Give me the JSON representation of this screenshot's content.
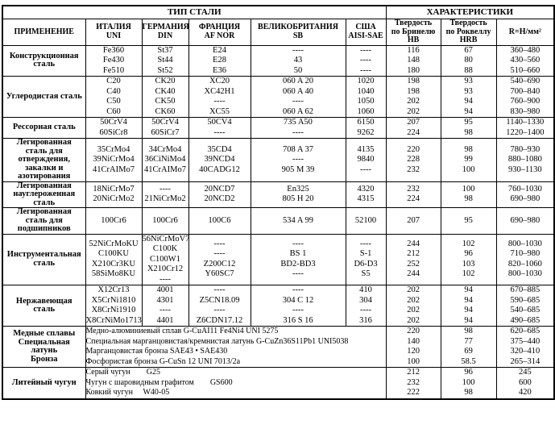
{
  "page": {
    "background_color": "#ffffff",
    "text_color": "#000000",
    "border_color": "#000000"
  },
  "table": {
    "header": {
      "group1": "ТИП СТАЛИ",
      "group2": "ХАРАКТЕРИСТИКИ",
      "columns": [
        {
          "name": "application",
          "lines": [
            "ПРИМЕНЕНИЕ"
          ]
        },
        {
          "name": "italy-uni",
          "lines": [
            "ИТАЛИЯ",
            "UNI"
          ]
        },
        {
          "name": "germany-din",
          "lines": [
            "ГЕРМАНИЯ",
            "DIN"
          ]
        },
        {
          "name": "france-afnor",
          "lines": [
            "ФРАНЦИЯ",
            "AF NOR"
          ]
        },
        {
          "name": "uk-sb",
          "lines": [
            "ВЕЛИКОБРИТАНИЯ",
            "SB"
          ]
        },
        {
          "name": "usa-aisi-sae",
          "lines": [
            "США",
            "AISI-SAE"
          ]
        },
        {
          "name": "hardness-brinell",
          "lines": [
            "Твердость",
            "по Бринелю",
            "HB"
          ]
        },
        {
          "name": "hardness-rockwell",
          "lines": [
            "Твердость",
            "по Роквеллу",
            "HRB"
          ]
        },
        {
          "name": "r-n-mm2",
          "lines": [
            "R=Н/мм²"
          ]
        }
      ]
    },
    "rows": [
      {
        "application": [
          "Конструкционная",
          "сталь"
        ],
        "cells": [
          {
            "lines": [
              "Fe360",
              "Fe430",
              "Fe510"
            ]
          },
          {
            "lines": [
              "St37",
              "St44",
              "St52"
            ]
          },
          {
            "lines": [
              "E24",
              "E28",
              "E36"
            ]
          },
          {
            "lines": [
              "----",
              "43",
              "50"
            ]
          },
          {
            "lines": [
              "----",
              "----",
              "----"
            ]
          },
          {
            "lines": [
              "116",
              "148",
              "180"
            ]
          },
          {
            "lines": [
              "67",
              "80",
              "88"
            ]
          },
          {
            "lines": [
              "360–480",
              "430–560",
              "510–660"
            ]
          }
        ]
      },
      {
        "application": [
          "Углеродистая сталь"
        ],
        "cells": [
          {
            "lines": [
              "C20",
              "C40",
              "C50",
              "C60"
            ]
          },
          {
            "lines": [
              "CK20",
              "CK40",
              "CK50",
              "CK60"
            ]
          },
          {
            "lines": [
              "XC20",
              "XC42H1",
              "----",
              "XC55"
            ]
          },
          {
            "lines": [
              "060 A 20",
              "060 A 40",
              "----",
              "060 A 62"
            ]
          },
          {
            "lines": [
              "1020",
              "1040",
              "1050",
              "1060"
            ]
          },
          {
            "lines": [
              "198",
              "198",
              "202",
              "202"
            ]
          },
          {
            "lines": [
              "93",
              "93",
              "94",
              "94"
            ]
          },
          {
            "lines": [
              "540–690",
              "700–840",
              "760–900",
              "830–980"
            ]
          }
        ]
      },
      {
        "application": [
          "Рессорная сталь"
        ],
        "cells": [
          {
            "lines": [
              "50CrV4",
              "60SiCr8"
            ]
          },
          {
            "lines": [
              "50CrV4",
              "60SiCr7"
            ]
          },
          {
            "lines": [
              "50CV4",
              "----"
            ]
          },
          {
            "lines": [
              "735 A50",
              "----"
            ]
          },
          {
            "lines": [
              "6150",
              "9262"
            ]
          },
          {
            "lines": [
              "207",
              "224"
            ]
          },
          {
            "lines": [
              "95",
              "98"
            ]
          },
          {
            "lines": [
              "1140–1330",
              "1220–1400"
            ]
          }
        ]
      },
      {
        "application": [
          "Легированная",
          "сталь для",
          "отверждения,",
          "закалки и",
          "азотирования"
        ],
        "cells": [
          {
            "lines": [
              "35CrMo4",
              "39NiCrMo4",
              "41CrAIMo7"
            ]
          },
          {
            "lines": [
              "34CrMo4",
              "36CiNiMo4",
              "41CrAIMo7"
            ]
          },
          {
            "lines": [
              "35CD4",
              "39NCD4",
              "40CADG12"
            ]
          },
          {
            "lines": [
              "708 A 37",
              "----",
              "905 M 39"
            ]
          },
          {
            "lines": [
              "4135",
              "9840",
              "----"
            ]
          },
          {
            "lines": [
              "220",
              "228",
              "232"
            ]
          },
          {
            "lines": [
              "98",
              "99",
              "100"
            ]
          },
          {
            "lines": [
              "780–930",
              "880–1080",
              "930–1130"
            ]
          }
        ]
      },
      {
        "application": [
          "Легированная",
          "науглероженная",
          "сталь"
        ],
        "cells": [
          {
            "lines": [
              "18NiCrMo7",
              "20NiCrMo2"
            ]
          },
          {
            "lines": [
              "----",
              "21NiCrMo2"
            ]
          },
          {
            "lines": [
              "20NCD7",
              "20NCD2"
            ]
          },
          {
            "lines": [
              "En325",
              "805 H 20"
            ]
          },
          {
            "lines": [
              "4320",
              "4315"
            ]
          },
          {
            "lines": [
              "232",
              "224"
            ]
          },
          {
            "lines": [
              "100",
              "98"
            ]
          },
          {
            "lines": [
              "760–1030",
              "690–980"
            ]
          }
        ]
      },
      {
        "application": [
          "Легированная",
          "сталь для",
          "подшипников"
        ],
        "cells": [
          {
            "lines": [
              "100Cr6"
            ]
          },
          {
            "lines": [
              "100Cr6"
            ]
          },
          {
            "lines": [
              "100C6"
            ]
          },
          {
            "lines": [
              "534 A 99"
            ]
          },
          {
            "lines": [
              "52100"
            ]
          },
          {
            "lines": [
              "207"
            ]
          },
          {
            "lines": [
              "95"
            ]
          },
          {
            "lines": [
              "690–980"
            ]
          }
        ]
      },
      {
        "application": [
          "Инструментальная",
          "сталь"
        ],
        "cells": [
          {
            "lines": [
              "52NiCrMoKU",
              "C100KU",
              "X210Cr3KU",
              "58SiMo8KU"
            ]
          },
          {
            "lines": [
              "56NiCrMoV7",
              "C100K",
              "C100W1",
              "X210Cr12",
              "----"
            ]
          },
          {
            "lines": [
              "----",
              "----",
              "Z200C12",
              "Y60SC7"
            ]
          },
          {
            "lines": [
              "----",
              "BS 1",
              "BD2-BD3",
              "----"
            ]
          },
          {
            "lines": [
              "----",
              "S-1",
              "D6-D3",
              "S5"
            ]
          },
          {
            "lines": [
              "244",
              "212",
              "252",
              "244"
            ]
          },
          {
            "lines": [
              "102",
              "96",
              "103",
              "102"
            ]
          },
          {
            "lines": [
              "800–1030",
              "710–980",
              "820–1060",
              "800–1030"
            ]
          }
        ]
      },
      {
        "application": [
          "Нержавеющая",
          "сталь"
        ],
        "cells": [
          {
            "lines": [
              "X12Cr13",
              "X5CrNi1810",
              "X8CrNi1910",
              "X8CrNiMo1713"
            ]
          },
          {
            "lines": [
              "4001",
              "4301",
              "----",
              "4401"
            ]
          },
          {
            "lines": [
              "----",
              "Z5CN18.09",
              "----",
              "Z6CDN17.12"
            ]
          },
          {
            "lines": [
              "----",
              "304 C 12",
              "----",
              "316 S 16"
            ]
          },
          {
            "lines": [
              "410",
              "304",
              "----",
              "316"
            ]
          },
          {
            "lines": [
              "202",
              "202",
              "202",
              "202"
            ]
          },
          {
            "lines": [
              "94",
              "94",
              "94",
              "94"
            ]
          },
          {
            "lines": [
              "670–885",
              "590–685",
              "540–685",
              "490–685"
            ]
          }
        ]
      },
      {
        "application": [
          "Медные сплавы",
          "Специальная",
          "латунь",
          "Бронза"
        ],
        "cells": [
          {
            "span": 5,
            "align": "left",
            "lines": [
              "Медно-алюминиевый сплав G-CuAI11 Fe4Ni4 UNI 5275",
              "Специальная марганцовистая/кремнистая латунь G-CuZn36S11Pb1 UNI5038",
              "Марганцовистая бронза SAE43 • SAE430",
              "Фосфористая бронза G-CuSn 12 UNI 7013/2a"
            ]
          },
          {
            "lines": [
              "220",
              "140",
              "120",
              "100"
            ]
          },
          {
            "lines": [
              "98",
              "77",
              "69",
              "58.5"
            ]
          },
          {
            "lines": [
              "620–685",
              "375–440",
              "320–410",
              "265–314"
            ]
          }
        ]
      },
      {
        "application": [
          "Литейный чугун"
        ],
        "cells": [
          {
            "span": 5,
            "align": "left",
            "lines": [
              "Серый чугун        G25",
              "Чугун с шаровидным графитом        GS600",
              "Ковкий чугун     W40-05"
            ]
          },
          {
            "lines": [
              "212",
              "232",
              "222"
            ]
          },
          {
            "lines": [
              "96",
              "100",
              "98"
            ]
          },
          {
            "lines": [
              "245",
              "600",
              "420"
            ]
          }
        ]
      }
    ]
  }
}
